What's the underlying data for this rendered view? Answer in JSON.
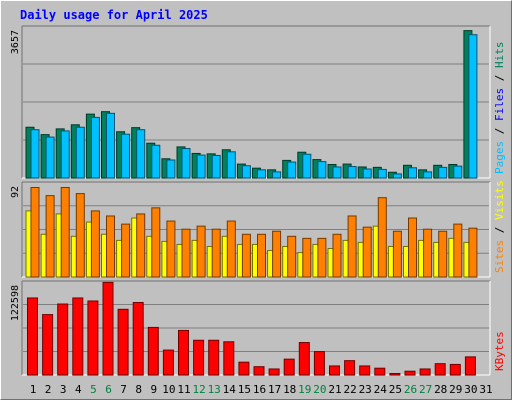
{
  "title": "Daily usage for April 2025",
  "chart_data": {
    "type": "bar",
    "title": "Daily usage for April 2025",
    "categories": [
      "1",
      "2",
      "3",
      "4",
      "5",
      "6",
      "7",
      "8",
      "9",
      "10",
      "11",
      "12",
      "13",
      "14",
      "15",
      "16",
      "17",
      "18",
      "19",
      "20",
      "21",
      "22",
      "23",
      "24",
      "25",
      "26",
      "27",
      "28",
      "29",
      "30",
      "31"
    ],
    "weekend_days": [
      "5",
      "6",
      "12",
      "13",
      "19",
      "20",
      "26",
      "27"
    ],
    "colors": {
      "hits": "#00805c",
      "files": "#0000ff",
      "pages": "#00c0ff",
      "visits": "#ffff00",
      "sites": "#ff8000",
      "kbytes": "#ff0000",
      "weekend_label": "#008040",
      "weekday_label": "#000000"
    },
    "panels": [
      {
        "id": "top",
        "scale_label": "3657",
        "ymax": 3657,
        "legend": [
          {
            "text": "Pages",
            "color": "#00c0ff"
          },
          {
            "text": " / ",
            "color": "#000000"
          },
          {
            "text": "Files",
            "color": "#0000ff"
          },
          {
            "text": " / ",
            "color": "#000000"
          },
          {
            "text": "Hits",
            "color": "#00805c"
          }
        ],
        "series": [
          {
            "name": "Hits",
            "color": "#00805c",
            "values": [
              1240,
              1060,
              1200,
              1300,
              1560,
              1620,
              1130,
              1230,
              850,
              470,
              760,
              600,
              590,
              690,
              340,
              240,
              200,
              430,
              630,
              450,
              330,
              340,
              270,
              260,
              140,
              310,
              200,
              310,
              330,
              3600,
              null
            ]
          },
          {
            "name": "Pages",
            "color": "#00c0ff",
            "values": [
              1180,
              1000,
              1150,
              1240,
              1480,
              1580,
              1070,
              1180,
              800,
              440,
              720,
              560,
              550,
              640,
              300,
              200,
              150,
              390,
              580,
              400,
              270,
              280,
              220,
              210,
              100,
              250,
              150,
              260,
              290,
              3500,
              null
            ]
          }
        ]
      },
      {
        "id": "middle",
        "scale_label": "92",
        "ymax": 92,
        "legend": [
          {
            "text": "Sites",
            "color": "#ff8000"
          },
          {
            "text": " / ",
            "color": "#000000"
          },
          {
            "text": "Visits",
            "color": "#ffff00"
          }
        ],
        "series": [
          {
            "name": "Visits",
            "color": "#ffff00",
            "values": [
              65,
              42,
              62,
              40,
              54,
              42,
              36,
              58,
              40,
              35,
              32,
              36,
              30,
              40,
              32,
              32,
              26,
              30,
              24,
              32,
              28,
              36,
              34,
              50,
              30,
              30,
              36,
              34,
              38,
              34,
              null
            ]
          },
          {
            "name": "Sites",
            "color": "#ff8000",
            "values": [
              88,
              80,
              88,
              82,
              65,
              60,
              52,
              62,
              68,
              55,
              47,
              50,
              47,
              55,
              42,
              42,
              45,
              40,
              38,
              38,
              42,
              60,
              49,
              78,
              45,
              58,
              47,
              45,
              52,
              48,
              null
            ]
          }
        ]
      },
      {
        "id": "bottom",
        "scale_label": "122598",
        "ymax": 122598,
        "legend": [
          {
            "text": "KBytes",
            "color": "#ff0000"
          }
        ],
        "series": [
          {
            "name": "KBytes",
            "color": "#ff0000",
            "values": [
              102000,
              80000,
              94000,
              102000,
              98000,
              122598,
              87000,
              96000,
              63000,
              33000,
              59000,
              46000,
              46000,
              44000,
              17000,
              11000,
              8000,
              21000,
              43000,
              31000,
              12000,
              19000,
              12000,
              9000,
              2000,
              5000,
              8000,
              15000,
              14000,
              24000,
              null
            ]
          }
        ]
      }
    ]
  }
}
